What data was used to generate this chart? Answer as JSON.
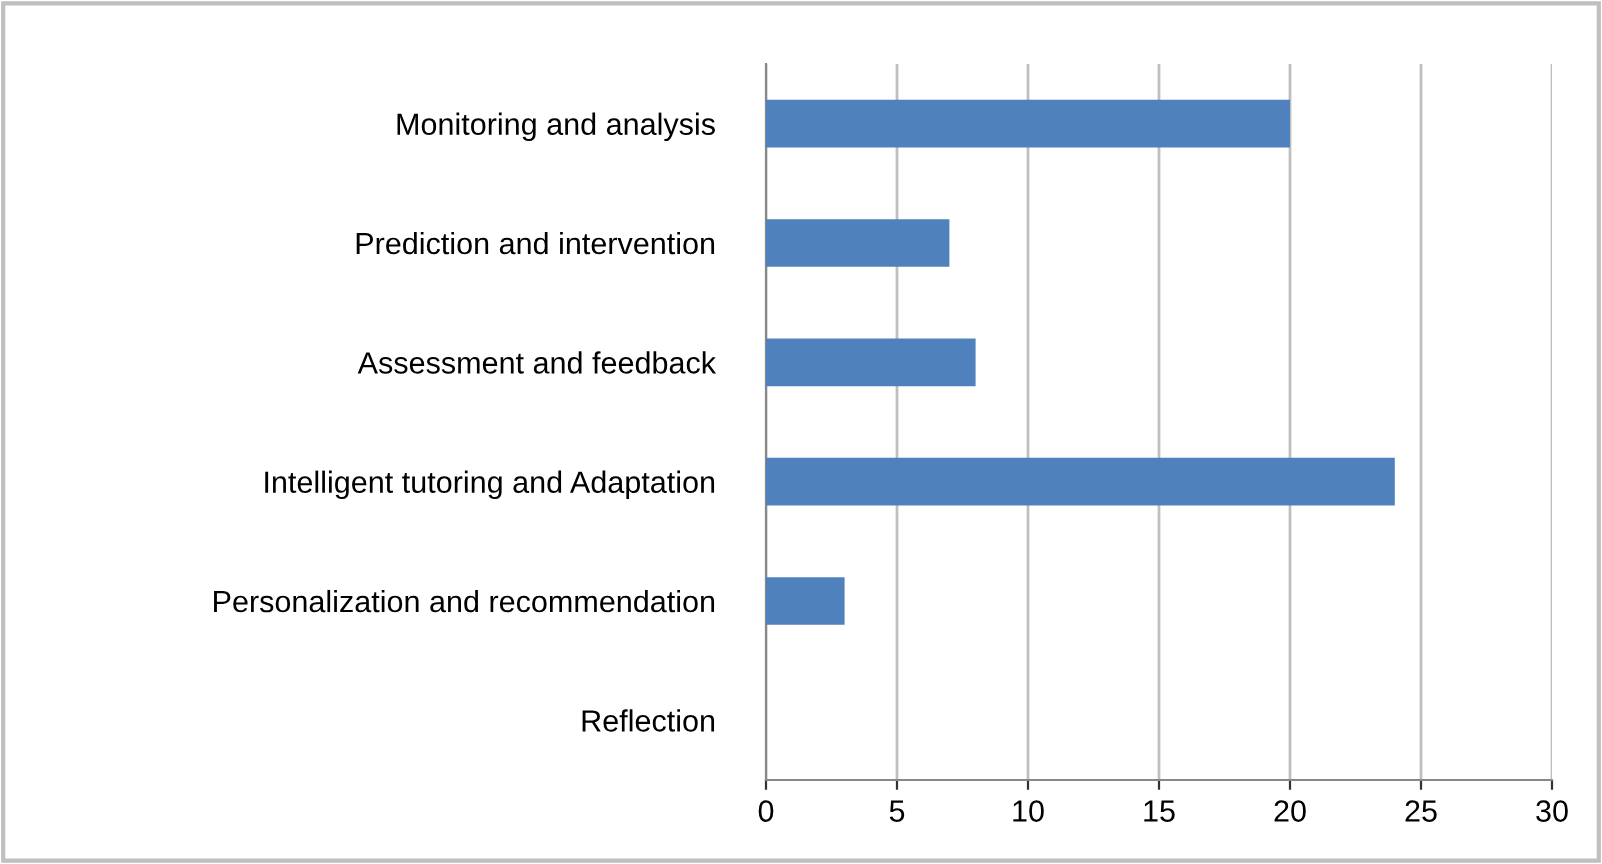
{
  "chart_data": {
    "type": "bar",
    "orientation": "horizontal",
    "categories": [
      "Monitoring and analysis",
      "Prediction and intervention",
      "Assessment and feedback",
      "Intelligent tutoring and Adaptation",
      "Personalization and recommendation",
      "Reflection"
    ],
    "values": [
      20,
      7,
      8,
      24,
      3,
      0
    ],
    "color": "#4f81bd",
    "xlim": [
      0,
      30
    ],
    "xticks": [
      0,
      5,
      10,
      15,
      20,
      25,
      30
    ],
    "grid": "x",
    "legend": false
  }
}
